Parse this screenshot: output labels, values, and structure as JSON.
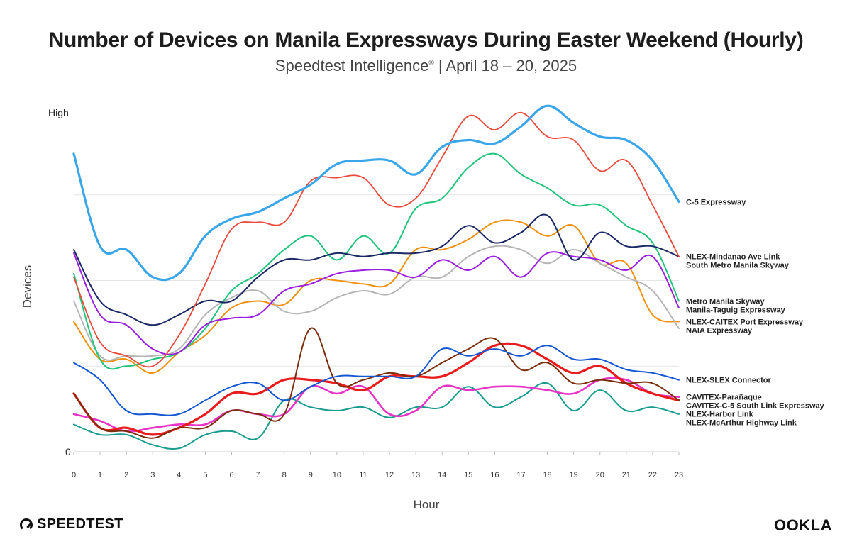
{
  "title": "Number of Devices on Manila Expressways During Easter Weekend (Hourly)",
  "subtitle": "Speedtest Intelligence",
  "subtitle_mark": "®",
  "subtitle_dates": " | April 18 – 20, 2025",
  "brand_left": "SPEEDTEST",
  "brand_right": "OOKLA",
  "chart_data": {
    "type": "line",
    "xlabel": "Hour",
    "ylabel": "Devices",
    "y_tick_labels": {
      "top": "High",
      "bottom": "0"
    },
    "ylim": [
      0,
      100
    ],
    "grid": true,
    "legend": "right, labels at line ends",
    "x": [
      0,
      1,
      2,
      3,
      4,
      5,
      6,
      7,
      8,
      9,
      10,
      11,
      12,
      13,
      14,
      15,
      16,
      17,
      18,
      19,
      20,
      21,
      22,
      23
    ],
    "series": [
      {
        "name": "C-5 Expressway",
        "color": "#3aa6ea",
        "width": 3.2,
        "values": [
          87,
          60,
          59,
          51,
          52,
          63,
          68,
          70,
          74,
          78,
          84,
          85,
          85,
          81,
          89,
          91,
          90,
          95,
          101,
          96,
          92,
          91,
          85,
          73
        ]
      },
      {
        "name": "NLEX-Mindanao Ave Link",
        "color": "#e94a3c",
        "width": 1.8,
        "values": [
          51,
          32,
          28,
          25,
          34,
          49,
          65,
          67,
          67,
          79,
          80,
          80,
          72,
          74,
          86,
          98,
          94,
          99,
          92,
          91,
          82,
          85,
          72,
          57
        ]
      },
      {
        "name": "South Metro Manila Skyway",
        "color": "#1b2866",
        "width": 2.0,
        "values": [
          59,
          44,
          40,
          37,
          40,
          44,
          44,
          51,
          56,
          56,
          58,
          57,
          58,
          58,
          60,
          66,
          61,
          64,
          69,
          56,
          64,
          60,
          60,
          57
        ]
      },
      {
        "name": "Manila-Taguig Expressway",
        "color": "#9b1fe0",
        "width": 2.0,
        "values": [
          58,
          40,
          37,
          30,
          29,
          37,
          39,
          40,
          47,
          49,
          52,
          53,
          53,
          51,
          56,
          53,
          57,
          51,
          58,
          57,
          56,
          53,
          57,
          42
        ]
      },
      {
        "name": "Metro Manila Skyway",
        "color": "#21c47b",
        "width": 2.0,
        "values": [
          52,
          27,
          25,
          27,
          29,
          36,
          47,
          52,
          59,
          63,
          56,
          63,
          58,
          71,
          74,
          83,
          87,
          81,
          77,
          72,
          72,
          66,
          61,
          44
        ]
      },
      {
        "name": "NAIA Expressway",
        "color": "#b5b5b5",
        "width": 2.0,
        "values": [
          44,
          28,
          28,
          28,
          30,
          40,
          45,
          47,
          41,
          41,
          45,
          47,
          46,
          51,
          51,
          57,
          60,
          59,
          55,
          59,
          55,
          51,
          47,
          36
        ]
      },
      {
        "name": "NLEX-CAITEX Port Expressway",
        "color": "#f0900f",
        "width": 2.0,
        "values": [
          38,
          27,
          27,
          23,
          29,
          34,
          42,
          44,
          43,
          50,
          50,
          49,
          49,
          59,
          59,
          62,
          67,
          67,
          63,
          66,
          55,
          55,
          40,
          38
        ]
      },
      {
        "name": "NLEX-SLEX Connector",
        "color": "#1457d2",
        "width": 2.0,
        "values": [
          26,
          21,
          12,
          11,
          11,
          15,
          19,
          20,
          15,
          19,
          22,
          22,
          22,
          22,
          30,
          28,
          30,
          28,
          31,
          27,
          27,
          24,
          23,
          21
        ]
      },
      {
        "name": "CAVITEX-C-5 South Link Expressway",
        "color": "#7b2d0b",
        "width": 2.0,
        "values": [
          17,
          7,
          6,
          4,
          7,
          7,
          12,
          11,
          11,
          36,
          20,
          21,
          23,
          22,
          26,
          30,
          33,
          24,
          26,
          20,
          21,
          20,
          20,
          15
        ]
      },
      {
        "name": "NLEX-Harbor Link",
        "color": "#e81c1c",
        "width": 3.2,
        "values": [
          17,
          7,
          7,
          5,
          7,
          11,
          17,
          17,
          21,
          21,
          20,
          18,
          22,
          22,
          22,
          26,
          31,
          31,
          27,
          23,
          25,
          20,
          17,
          15
        ]
      },
      {
        "name": "CAVITEX-Parañaque",
        "color": "#e833c7",
        "width": 2.6,
        "values": [
          11,
          9,
          6,
          7,
          8,
          8,
          12,
          11,
          11,
          19,
          17,
          19,
          11,
          12,
          19,
          18,
          19,
          19,
          18,
          17,
          21,
          21,
          17,
          16
        ]
      },
      {
        "name": "NLEX-McArthur Highway Link",
        "color": "#179c8e",
        "width": 2.0,
        "values": [
          8,
          5,
          5,
          2,
          1,
          5,
          6,
          4,
          15,
          13,
          12,
          13,
          10,
          13,
          13,
          19,
          13,
          16,
          20,
          12,
          18,
          12,
          13,
          11
        ]
      }
    ]
  }
}
